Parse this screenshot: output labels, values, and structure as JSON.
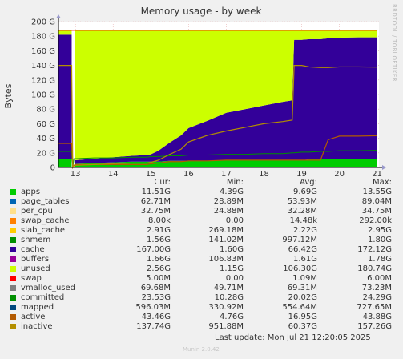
{
  "chart_data": {
    "type": "area",
    "title": "Memory usage - by week",
    "ylabel": "Bytes",
    "side_label": "RRDTOOL / TOBI OETIKER",
    "x_ticks": [
      "13",
      "14",
      "15",
      "16",
      "17",
      "18",
      "19",
      "20",
      "21"
    ],
    "y_ticks": [
      "0",
      "20 G",
      "40 G",
      "60 G",
      "80 G",
      "100 G",
      "120 G",
      "140 G",
      "160 G",
      "180 G",
      "200 G"
    ],
    "ylim": [
      0,
      200
    ],
    "y_unit": "GB",
    "grid": true,
    "columns": [
      "Cur:",
      "Min:",
      "Avg:",
      "Max:"
    ],
    "series": [
      {
        "name": "apps",
        "color": "#00cc00",
        "cur": "11.51G",
        "min": "4.39G",
        "avg": "9.69G",
        "max": "13.55G"
      },
      {
        "name": "page_tables",
        "color": "#0066b3",
        "cur": "62.71M",
        "min": "28.89M",
        "avg": "53.93M",
        "max": "89.04M"
      },
      {
        "name": "per_cpu",
        "color": "#ffe08a",
        "cur": "32.75M",
        "min": "24.88M",
        "avg": "32.28M",
        "max": "34.75M"
      },
      {
        "name": "swap_cache",
        "color": "#ff8000",
        "cur": "8.00k",
        "min": "0.00",
        "avg": "14.48k",
        "max": "292.00k"
      },
      {
        "name": "slab_cache",
        "color": "#ffcc00",
        "cur": "2.91G",
        "min": "269.18M",
        "avg": "2.22G",
        "max": "2.95G"
      },
      {
        "name": "shmem",
        "color": "#008f00",
        "cur": "1.56G",
        "min": "141.02M",
        "avg": "997.12M",
        "max": "1.80G"
      },
      {
        "name": "cache",
        "color": "#330099",
        "cur": "167.00G",
        "min": "1.60G",
        "avg": "66.42G",
        "max": "172.12G"
      },
      {
        "name": "buffers",
        "color": "#990099",
        "cur": "1.66G",
        "min": "106.83M",
        "avg": "1.61G",
        "max": "1.78G"
      },
      {
        "name": "unused",
        "color": "#ccff00",
        "cur": "2.56G",
        "min": "1.15G",
        "avg": "106.30G",
        "max": "180.74G"
      },
      {
        "name": "swap",
        "color": "#ff0000",
        "cur": "5.00M",
        "min": "0.00",
        "avg": "1.09M",
        "max": "6.00M"
      },
      {
        "name": "vmalloc_used",
        "color": "#808080",
        "cur": "69.68M",
        "min": "49.71M",
        "avg": "69.31M",
        "max": "73.23M"
      },
      {
        "name": "committed",
        "color": "#008f00",
        "cur": "23.53G",
        "min": "10.28G",
        "avg": "20.02G",
        "max": "24.29G"
      },
      {
        "name": "mapped",
        "color": "#00487d",
        "cur": "596.03M",
        "min": "330.92M",
        "avg": "554.64M",
        "max": "727.65M"
      },
      {
        "name": "active",
        "color": "#b35a00",
        "cur": "43.46G",
        "min": "4.76G",
        "avg": "16.95G",
        "max": "43.88G"
      },
      {
        "name": "inactive",
        "color": "#b38f00",
        "cur": "137.74G",
        "min": "951.88M",
        "avg": "60.37G",
        "max": "157.26G"
      }
    ],
    "x": [
      12.55,
      12.9,
      12.93,
      12.96,
      13.0,
      13.5,
      14.0,
      14.5,
      14.9,
      15.0,
      15.2,
      15.5,
      15.8,
      16.0,
      16.5,
      17.0,
      17.5,
      18.0,
      18.5,
      18.75,
      18.8,
      19.0,
      19.2,
      19.5,
      19.7,
      20.0,
      20.5,
      21.0
    ],
    "total": [
      188,
      188,
      188,
      188,
      188,
      188,
      188,
      188,
      188,
      188,
      188,
      188,
      188,
      188,
      188,
      188,
      188,
      188,
      188,
      188,
      188,
      188,
      188,
      188,
      188,
      188,
      188,
      188
    ],
    "apps_values": [
      12,
      12,
      0,
      5,
      5,
      6,
      7,
      8,
      8,
      8,
      8,
      9,
      9,
      9,
      9,
      10,
      10,
      10,
      10,
      10,
      10,
      10,
      11,
      11,
      11,
      11,
      11.5,
      11.5
    ],
    "cache_values": [
      170,
      170,
      0,
      4,
      5,
      6,
      7,
      8,
      9,
      10,
      15,
      25,
      35,
      45,
      55,
      65,
      70,
      75,
      80,
      82,
      165,
      165,
      165,
      165,
      166,
      167,
      167,
      167
    ],
    "inactive_values": [
      140,
      140,
      0,
      2,
      3,
      4,
      5,
      6,
      6,
      7,
      10,
      18,
      25,
      35,
      44,
      50,
      55,
      60,
      63,
      65,
      140,
      140,
      138,
      137,
      137,
      138,
      138,
      137.7
    ],
    "active_values": [
      33,
      33,
      0,
      3,
      4,
      4,
      4,
      4,
      4,
      5,
      6,
      8,
      8,
      9,
      9,
      10,
      10,
      10,
      10,
      10,
      10,
      10,
      10,
      10,
      38,
      43,
      43,
      43.5
    ],
    "committed_values": [
      22,
      22,
      0,
      12,
      12,
      13,
      13,
      14,
      14,
      15,
      15,
      16,
      16,
      17,
      17,
      18,
      18,
      19,
      19,
      20,
      20,
      21,
      21,
      22,
      22,
      23,
      23,
      23.5
    ]
  },
  "footer": {
    "last_update": "Last update: Mon Jul 21 12:20:05 2025",
    "version": "Munin 2.0.42"
  }
}
